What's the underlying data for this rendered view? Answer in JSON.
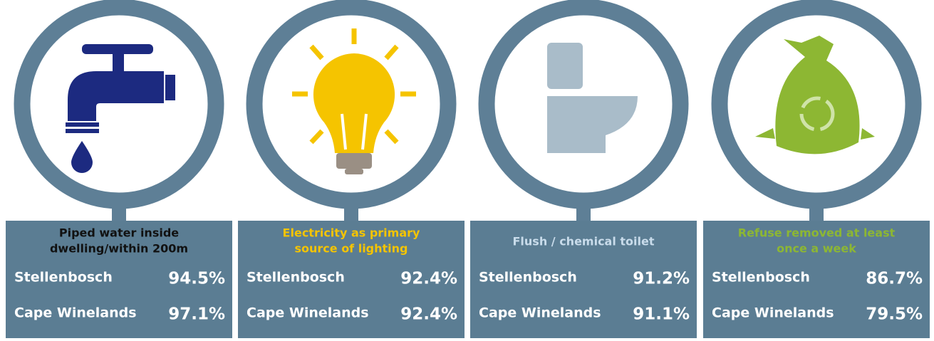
{
  "panels": [
    {
      "title_lines": [
        "Piped water inside",
        "dwelling/within 200m"
      ],
      "title_color": "#111111",
      "rows": [
        {
          "name": "Stellenbosch",
          "value": "94.5%"
        },
        {
          "name": "Cape Winelands",
          "value": "97.1%"
        }
      ]
    },
    {
      "title_lines": [
        "Electricity as primary",
        "source of lighting"
      ],
      "title_color": "#f5c400",
      "rows": [
        {
          "name": "Stellenbosch",
          "value": "92.4%"
        },
        {
          "name": "Cape Winelands",
          "value": "92.4%"
        }
      ]
    },
    {
      "title_lines": [
        "Flush / chemical toilet"
      ],
      "title_color": "#c9dceb",
      "rows": [
        {
          "name": "Stellenbosch",
          "value": "91.2%"
        },
        {
          "name": "Cape Winelands",
          "value": "91.1%"
        }
      ]
    },
    {
      "title_lines": [
        "Refuse removed at least",
        "once a week"
      ],
      "title_color": "#8db733",
      "rows": [
        {
          "name": "Stellenbosch",
          "value": "86.7%"
        },
        {
          "name": "Cape Winelands",
          "value": "79.5%"
        }
      ]
    }
  ]
}
